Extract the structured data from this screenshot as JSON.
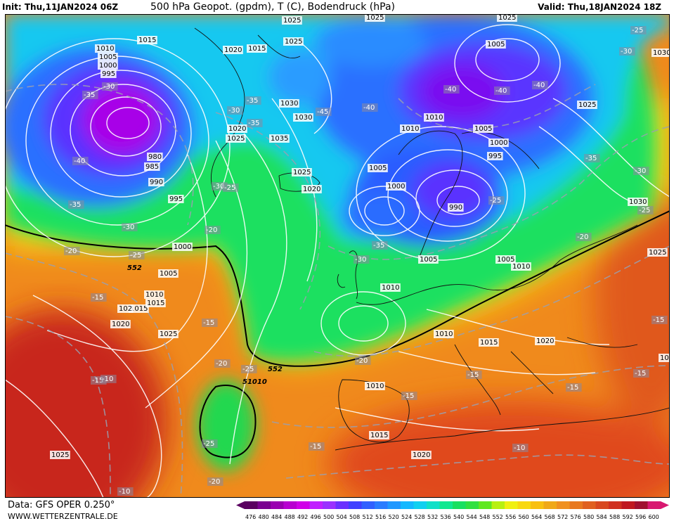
{
  "header": {
    "init": "Init: Thu,11JAN2024 06Z",
    "title": "500 hPa Geopot. (gpdm), T (C), Bodendruck (hPa)",
    "valid": "Valid: Thu,18JAN2024 18Z"
  },
  "footer": {
    "source": "Data: GFS OPER 0.250°",
    "site": "WWW.WETTERZENTRALE.DE"
  },
  "colors": {
    "deep_purple": "#8a00e6",
    "violet": "#5a2cff",
    "blue": "#2a6cff",
    "cyan": "#13d4f0",
    "green": "#19e06a",
    "yellow": "#f5f010",
    "orange": "#f08a1c",
    "red": "#e23a22",
    "dark_red": "#c81e1e"
  },
  "colorbar": {
    "values": [
      "476",
      "480",
      "484",
      "488",
      "492",
      "496",
      "500",
      "504",
      "508",
      "512",
      "516",
      "520",
      "524",
      "528",
      "532",
      "536",
      "540",
      "544",
      "548",
      "552",
      "556",
      "560",
      "564",
      "568",
      "572",
      "576",
      "580",
      "584",
      "588",
      "592",
      "596",
      "600"
    ],
    "colors": [
      "#5a0060",
      "#7a0090",
      "#9a00b0",
      "#b800d0",
      "#d000e8",
      "#c020ff",
      "#9a30ff",
      "#6a30ff",
      "#4040ff",
      "#3060ff",
      "#2a7cff",
      "#2098ff",
      "#14b8ff",
      "#10d0f0",
      "#10e0c8",
      "#10e890",
      "#18e060",
      "#30e040",
      "#60e820",
      "#b8f010",
      "#f0f010",
      "#f8d810",
      "#f8c010",
      "#f0a818",
      "#f09020",
      "#e87820",
      "#e06020",
      "#d84820",
      "#d03020",
      "#c01820",
      "#a01030",
      "#d81870"
    ]
  },
  "map_labels": {
    "pressure": [
      {
        "text": "1010"
      },
      {
        "text": "1005"
      },
      {
        "text": "1000"
      },
      {
        "text": "995"
      },
      {
        "text": "980"
      },
      {
        "text": "985"
      },
      {
        "text": "990"
      },
      {
        "text": "995"
      },
      {
        "text": "1000"
      },
      {
        "text": "1005"
      },
      {
        "text": "1010"
      },
      {
        "text": "1015"
      },
      {
        "text": "1020"
      },
      {
        "text": "1025"
      },
      {
        "text": "1025"
      },
      {
        "text": "1015"
      },
      {
        "text": "1020"
      },
      {
        "text": "1015"
      },
      {
        "text": "1025"
      },
      {
        "text": "1025"
      },
      {
        "text": "1030"
      },
      {
        "text": "1030"
      },
      {
        "text": "1020"
      },
      {
        "text": "1025"
      },
      {
        "text": "1035"
      },
      {
        "text": "1025"
      },
      {
        "text": "1020"
      },
      {
        "text": "1025"
      },
      {
        "text": "1005"
      },
      {
        "text": "1000"
      },
      {
        "text": "1010"
      },
      {
        "text": "1010"
      },
      {
        "text": "1005"
      },
      {
        "text": "1000"
      },
      {
        "text": "995"
      },
      {
        "text": "990"
      },
      {
        "text": "1005"
      },
      {
        "text": "1010"
      },
      {
        "text": "1005"
      },
      {
        "text": "1010"
      },
      {
        "text": "1015"
      },
      {
        "text": "1020"
      },
      {
        "text": "1025"
      },
      {
        "text": "1030"
      },
      {
        "text": "1030"
      },
      {
        "text": "1025"
      },
      {
        "text": "1010"
      },
      {
        "text": "1010"
      },
      {
        "text": "1015"
      },
      {
        "text": "1020"
      },
      {
        "text": "1025"
      },
      {
        "text": "1005"
      },
      {
        "text": "1000"
      },
      {
        "text": "102"
      },
      {
        "text": "1015"
      }
    ],
    "temperature": [
      {
        "text": "-35"
      },
      {
        "text": "-30"
      },
      {
        "text": "-40"
      },
      {
        "text": "-35"
      },
      {
        "text": "-30"
      },
      {
        "text": "-25"
      },
      {
        "text": "-20"
      },
      {
        "text": "-15"
      },
      {
        "text": "-30"
      },
      {
        "text": "-35"
      },
      {
        "text": "-35"
      },
      {
        "text": "-45"
      },
      {
        "text": "-30"
      },
      {
        "text": "-25"
      },
      {
        "text": "-20"
      },
      {
        "text": "-40"
      },
      {
        "text": "-40"
      },
      {
        "text": "-40"
      },
      {
        "text": "-40"
      },
      {
        "text": "-25"
      },
      {
        "text": "-35"
      },
      {
        "text": "-30"
      },
      {
        "text": "-35"
      },
      {
        "text": "-30"
      },
      {
        "text": "-25"
      },
      {
        "text": "-30"
      },
      {
        "text": "-25"
      },
      {
        "text": "-20"
      },
      {
        "text": "-25"
      },
      {
        "text": "-20"
      },
      {
        "text": "-15"
      },
      {
        "text": "-15"
      },
      {
        "text": "-15"
      },
      {
        "text": "-15"
      },
      {
        "text": "-10"
      },
      {
        "text": "-25"
      },
      {
        "text": "-20"
      },
      {
        "text": "-15"
      },
      {
        "text": "-10"
      },
      {
        "text": "-20"
      },
      {
        "text": "-10"
      },
      {
        "text": "-15"
      },
      {
        "text": "-15"
      },
      {
        "text": "-15"
      }
    ],
    "geopotential": [
      {
        "text": "552"
      },
      {
        "text": "552"
      },
      {
        "text": "51010"
      }
    ]
  }
}
